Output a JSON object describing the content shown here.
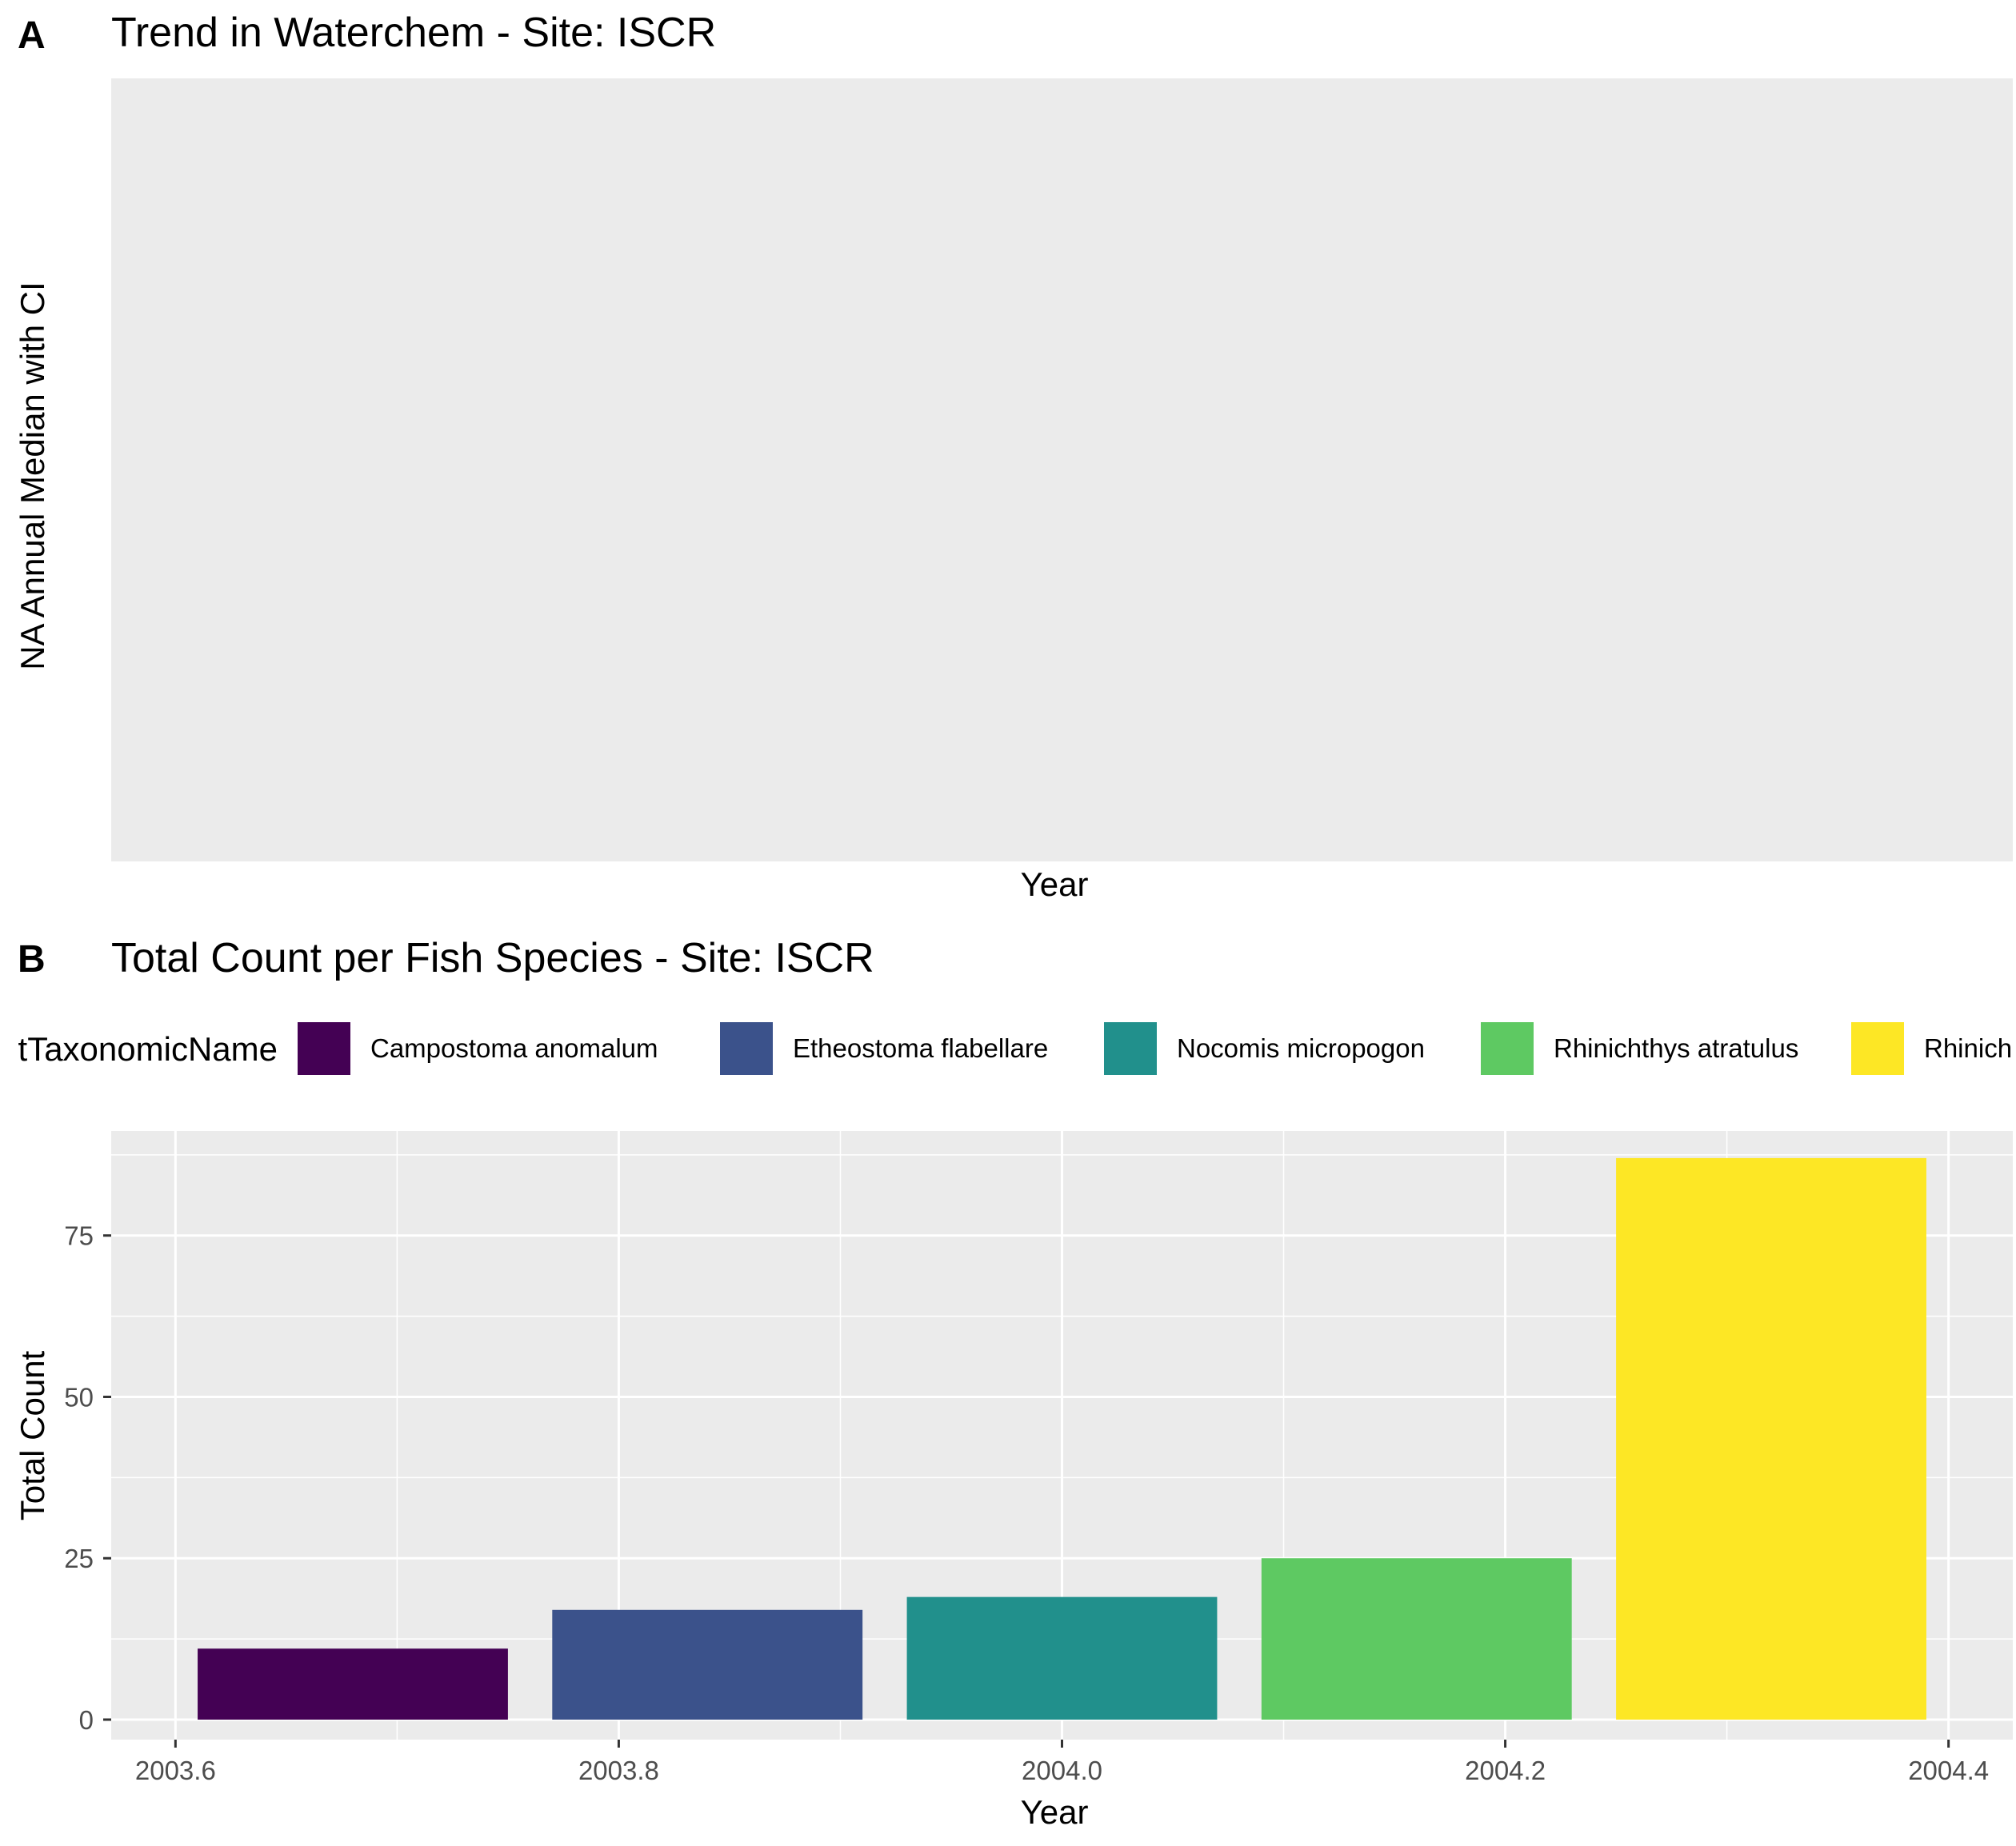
{
  "panel_a": {
    "tag": "A",
    "title": "Trend in Waterchem - Site: ISCR",
    "xlabel": "Year",
    "ylabel": "NA Annual Median with CI"
  },
  "panel_b": {
    "tag": "B",
    "title": "Total Count per Fish Species - Site: ISCR",
    "legend_title": "tTaxonomicName",
    "legend_items": [
      "Campostoma anomalum",
      "Etheostoma flabellare",
      "Nocomis micropogon",
      "Rhinichthys atratulus",
      "Rhinich"
    ]
  },
  "chart_data": [
    {
      "type": "line",
      "title": "Trend in Waterchem - Site: ISCR",
      "xlabel": "Year",
      "ylabel": "NA Annual Median with CI",
      "series": []
    },
    {
      "type": "bar",
      "title": "Total Count per Fish Species - Site: ISCR",
      "xlabel": "Year",
      "ylabel": "Total Count",
      "categories": [
        "Campostoma anomalum",
        "Etheostoma flabellare",
        "Nocomis micropogon",
        "Rhinichthys atratulus",
        "Rhinich"
      ],
      "x": [
        2003.68,
        2003.84,
        2004.0,
        2004.16,
        2004.32
      ],
      "values": [
        11,
        17,
        19,
        25,
        87
      ],
      "colors": [
        "#440154",
        "#3b528b",
        "#21908c",
        "#5ec962",
        "#fde725"
      ],
      "xlim": [
        2003.571,
        2004.429
      ],
      "ylim": [
        -3.1,
        91.2
      ],
      "xticks": [
        2003.6,
        2003.8,
        2004.0,
        2004.2,
        2004.4
      ],
      "xtick_labels": [
        "2003.6",
        "2003.8",
        "2004.0",
        "2004.2",
        "2004.4"
      ],
      "yticks": [
        0,
        25,
        50,
        75
      ],
      "ytick_labels": [
        "0",
        "25",
        "50",
        "75"
      ],
      "grid": true,
      "legend_position": "top"
    }
  ]
}
